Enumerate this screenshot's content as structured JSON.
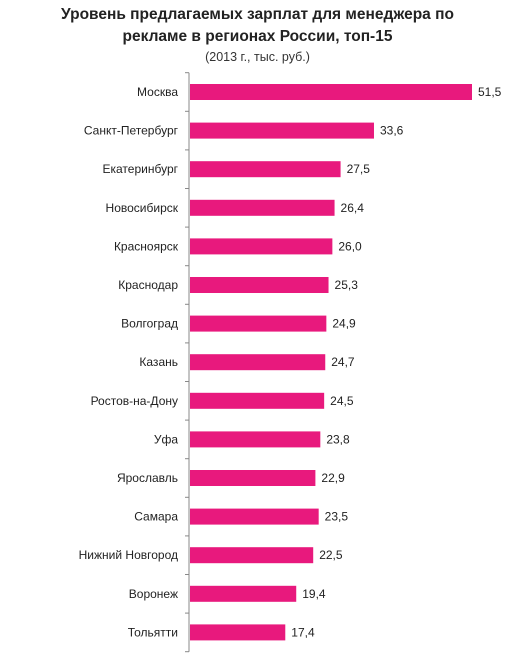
{
  "chart_data": {
    "type": "bar",
    "orientation": "horizontal",
    "title_line1": "Уровень предлагаемых зарплат для менеджера по",
    "title_line2": "рекламе в регионах России, топ-15",
    "subtitle": "(2013 г., тыс. руб.)",
    "categories": [
      "Москва",
      "Санкт-Петербург",
      "Екатеринбург",
      "Новосибирск",
      "Красноярск",
      "Краснодар",
      "Волгоград",
      "Казань",
      "Ростов-на-Дону",
      "Уфа",
      "Ярославль",
      "Самара",
      "Нижний Новгород",
      "Воронеж",
      "Тольятти"
    ],
    "values": [
      51.5,
      33.6,
      27.5,
      26.4,
      26.0,
      25.3,
      24.9,
      24.7,
      24.5,
      23.8,
      22.9,
      23.5,
      22.5,
      19.4,
      17.4
    ],
    "value_labels": [
      "51,5",
      "33,6",
      "27,5",
      "26,4",
      "26,0",
      "25,3",
      "24,9",
      "24,7",
      "24,5",
      "23,8",
      "22,9",
      "23,5",
      "22,5",
      "19,4",
      "17,4"
    ],
    "xlim": [
      0,
      51.5
    ],
    "grid": false,
    "legend": "none",
    "bar_color": "#e8197d",
    "axis_color": "#888888"
  }
}
